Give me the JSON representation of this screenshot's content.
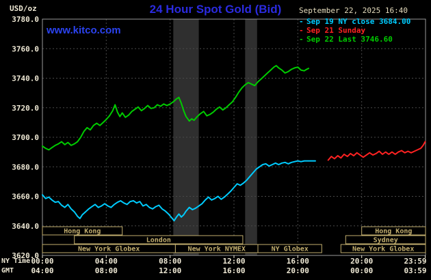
{
  "header": {
    "datetime": "September 22, 2025 16:40",
    "watermark": "www.kitco.com"
  },
  "theme": {
    "background": "#000000",
    "grid": "#4a4a4a",
    "border": "#9a9a9a",
    "band": "#2f2f2f",
    "session_box": "#c2ae6e",
    "axis_text": "#efe9d5",
    "title_blue": "#2b2bdf",
    "link_blue": "#2b43f0",
    "date_text": "#e5dcbd"
  },
  "sessions": [
    {
      "label": "Hong Kong",
      "row": 0,
      "start": 0,
      "end": 5.0
    },
    {
      "label": "Hong Kong",
      "row": 0,
      "start": 20.0,
      "end": 24.0
    },
    {
      "label": "London",
      "row": 1,
      "start": 2.0,
      "end": 12.55
    },
    {
      "label": "Sydney",
      "row": 1,
      "start": 19.0,
      "end": 24.0
    },
    {
      "label": "New York Globex",
      "row": 2,
      "start": 0,
      "end": 8.33
    },
    {
      "label": "New York NYMEX",
      "row": 2,
      "start": 8.33,
      "end": 13.5
    },
    {
      "label": "NY Globex",
      "row": 2,
      "start": 13.5,
      "end": 17.5
    },
    {
      "label": "New York Globex",
      "row": 2,
      "start": 18.7,
      "end": 24.0
    }
  ],
  "chart_data": {
    "type": "line",
    "title": "24 Hour Spot Gold (Bid)",
    "ylabel": "USD/oz",
    "ylim": [
      3620,
      3780
    ],
    "y_tick_step": 20,
    "y_tick_labels": [
      "3780.0",
      "3760.0",
      "3740.0",
      "3720.0",
      "3700.0",
      "3680.0",
      "3660.0",
      "3640.0",
      "3620.0"
    ],
    "x_range_hours": [
      0,
      24
    ],
    "x_tick_hours": [
      0,
      4,
      8,
      12,
      16,
      20,
      23.98
    ],
    "x_axis_rows": [
      {
        "label": "NY Time",
        "ticks": [
          "00:00",
          "04:00",
          "08:00",
          "12:00",
          "16:00",
          "20:00",
          "23:59"
        ]
      },
      {
        "label": "GMT",
        "ticks": [
          "04:00",
          "08:00",
          "12:00",
          "16:00",
          "20:00",
          "00:00",
          "03:59"
        ]
      }
    ],
    "grid": true,
    "legend_position": "top-right",
    "shaded_bands_hours": [
      [
        8.2,
        9.8
      ],
      [
        12.7,
        13.45
      ]
    ],
    "series": [
      {
        "id": "sep19",
        "legend_label": "Sep 19 NY close 3684.00",
        "color": "#00ccff",
        "points": [
          [
            0.0,
            3661
          ],
          [
            0.2,
            3658.5
          ],
          [
            0.4,
            3659.5
          ],
          [
            0.6,
            3657.5
          ],
          [
            0.8,
            3656
          ],
          [
            1.0,
            3656.5
          ],
          [
            1.2,
            3654
          ],
          [
            1.4,
            3652.5
          ],
          [
            1.6,
            3654.5
          ],
          [
            1.8,
            3651.5
          ],
          [
            2.0,
            3649.5
          ],
          [
            2.2,
            3646.5
          ],
          [
            2.35,
            3645
          ],
          [
            2.5,
            3647.5
          ],
          [
            2.7,
            3649.5
          ],
          [
            2.9,
            3651.5
          ],
          [
            3.1,
            3653
          ],
          [
            3.3,
            3654.5
          ],
          [
            3.5,
            3652.5
          ],
          [
            3.7,
            3653.5
          ],
          [
            3.9,
            3655
          ],
          [
            4.1,
            3653.5
          ],
          [
            4.3,
            3652.5
          ],
          [
            4.5,
            3654.5
          ],
          [
            4.7,
            3656
          ],
          [
            4.9,
            3657
          ],
          [
            5.1,
            3655.5
          ],
          [
            5.3,
            3654.5
          ],
          [
            5.5,
            3656.5
          ],
          [
            5.7,
            3657
          ],
          [
            5.9,
            3655.5
          ],
          [
            6.1,
            3656.5
          ],
          [
            6.3,
            3653.5
          ],
          [
            6.5,
            3654.5
          ],
          [
            6.7,
            3652.5
          ],
          [
            6.9,
            3651.5
          ],
          [
            7.1,
            3653
          ],
          [
            7.3,
            3654
          ],
          [
            7.5,
            3651.5
          ],
          [
            7.7,
            3650
          ],
          [
            7.9,
            3648
          ],
          [
            8.1,
            3645.5
          ],
          [
            8.25,
            3643.5
          ],
          [
            8.4,
            3646
          ],
          [
            8.55,
            3648
          ],
          [
            8.7,
            3646
          ],
          [
            8.85,
            3647.5
          ],
          [
            9.0,
            3650
          ],
          [
            9.2,
            3652.5
          ],
          [
            9.4,
            3651
          ],
          [
            9.6,
            3652
          ],
          [
            9.8,
            3653.5
          ],
          [
            10.0,
            3655
          ],
          [
            10.2,
            3657.5
          ],
          [
            10.4,
            3659.5
          ],
          [
            10.6,
            3657.5
          ],
          [
            10.8,
            3658.5
          ],
          [
            11.0,
            3660
          ],
          [
            11.2,
            3658
          ],
          [
            11.4,
            3659.5
          ],
          [
            11.6,
            3661.5
          ],
          [
            11.8,
            3663.5
          ],
          [
            12.0,
            3666
          ],
          [
            12.2,
            3668.5
          ],
          [
            12.4,
            3667.5
          ],
          [
            12.6,
            3669
          ],
          [
            12.8,
            3671
          ],
          [
            13.0,
            3673.5
          ],
          [
            13.2,
            3676
          ],
          [
            13.4,
            3678.5
          ],
          [
            13.6,
            3680
          ],
          [
            13.8,
            3681.5
          ],
          [
            14.0,
            3682
          ],
          [
            14.2,
            3680.5
          ],
          [
            14.4,
            3681.5
          ],
          [
            14.6,
            3682.5
          ],
          [
            14.8,
            3681.5
          ],
          [
            15.0,
            3682.5
          ],
          [
            15.2,
            3683
          ],
          [
            15.4,
            3682
          ],
          [
            15.6,
            3683
          ],
          [
            15.8,
            3683.5
          ],
          [
            16.0,
            3684
          ],
          [
            16.2,
            3683.5
          ],
          [
            16.4,
            3684
          ],
          [
            16.7,
            3684
          ],
          [
            17.1,
            3684
          ]
        ]
      },
      {
        "id": "sep21",
        "legend_label": "Sep 21 Sunday",
        "color": "#ff2222",
        "points": [
          [
            17.9,
            3684.5
          ],
          [
            18.1,
            3687
          ],
          [
            18.3,
            3685.5
          ],
          [
            18.5,
            3687.5
          ],
          [
            18.7,
            3686
          ],
          [
            18.9,
            3688.5
          ],
          [
            19.1,
            3687
          ],
          [
            19.3,
            3689
          ],
          [
            19.5,
            3687.5
          ],
          [
            19.7,
            3689.5
          ],
          [
            19.9,
            3688
          ],
          [
            20.1,
            3686.5
          ],
          [
            20.3,
            3688
          ],
          [
            20.5,
            3689.5
          ],
          [
            20.7,
            3688
          ],
          [
            20.9,
            3689
          ],
          [
            21.1,
            3690.5
          ],
          [
            21.3,
            3688.5
          ],
          [
            21.5,
            3690
          ],
          [
            21.7,
            3688.5
          ],
          [
            21.9,
            3690
          ],
          [
            22.1,
            3688.5
          ],
          [
            22.3,
            3690
          ],
          [
            22.5,
            3691
          ],
          [
            22.7,
            3689.5
          ],
          [
            22.9,
            3690.5
          ],
          [
            23.1,
            3689.5
          ],
          [
            23.3,
            3690.5
          ],
          [
            23.5,
            3691.5
          ],
          [
            23.7,
            3692.5
          ],
          [
            23.85,
            3694.5
          ],
          [
            23.98,
            3697
          ]
        ]
      },
      {
        "id": "sep22",
        "legend_label": "Sep 22 Last 3746.60",
        "color": "#00cc00",
        "points": [
          [
            0.0,
            3694
          ],
          [
            0.2,
            3692.5
          ],
          [
            0.4,
            3691.5
          ],
          [
            0.6,
            3693
          ],
          [
            0.8,
            3694.5
          ],
          [
            1.0,
            3695.5
          ],
          [
            1.2,
            3697
          ],
          [
            1.4,
            3695
          ],
          [
            1.6,
            3696.5
          ],
          [
            1.8,
            3694.5
          ],
          [
            2.0,
            3695.5
          ],
          [
            2.2,
            3697
          ],
          [
            2.4,
            3700
          ],
          [
            2.6,
            3704
          ],
          [
            2.8,
            3706.5
          ],
          [
            3.0,
            3705
          ],
          [
            3.2,
            3708
          ],
          [
            3.4,
            3709.5
          ],
          [
            3.6,
            3708
          ],
          [
            3.8,
            3710
          ],
          [
            4.0,
            3712
          ],
          [
            4.2,
            3714.5
          ],
          [
            4.4,
            3718
          ],
          [
            4.55,
            3722
          ],
          [
            4.7,
            3717
          ],
          [
            4.85,
            3714
          ],
          [
            5.0,
            3716.5
          ],
          [
            5.2,
            3713.5
          ],
          [
            5.4,
            3715
          ],
          [
            5.6,
            3717.5
          ],
          [
            5.8,
            3719
          ],
          [
            6.0,
            3720.5
          ],
          [
            6.2,
            3718
          ],
          [
            6.4,
            3719.5
          ],
          [
            6.6,
            3721.5
          ],
          [
            6.8,
            3719.5
          ],
          [
            7.0,
            3720
          ],
          [
            7.2,
            3722
          ],
          [
            7.4,
            3721
          ],
          [
            7.6,
            3722.5
          ],
          [
            7.8,
            3721.5
          ],
          [
            8.0,
            3722.5
          ],
          [
            8.2,
            3724
          ],
          [
            8.4,
            3726
          ],
          [
            8.55,
            3727
          ],
          [
            8.7,
            3723
          ],
          [
            8.85,
            3718
          ],
          [
            9.0,
            3714
          ],
          [
            9.2,
            3711
          ],
          [
            9.35,
            3712.5
          ],
          [
            9.5,
            3711.5
          ],
          [
            9.7,
            3714
          ],
          [
            9.9,
            3716
          ],
          [
            10.1,
            3717.5
          ],
          [
            10.3,
            3714.5
          ],
          [
            10.5,
            3715.5
          ],
          [
            10.7,
            3717
          ],
          [
            10.9,
            3719
          ],
          [
            11.1,
            3720.5
          ],
          [
            11.3,
            3718.5
          ],
          [
            11.5,
            3720
          ],
          [
            11.7,
            3722
          ],
          [
            11.9,
            3724
          ],
          [
            12.1,
            3727
          ],
          [
            12.3,
            3730.5
          ],
          [
            12.5,
            3733.5
          ],
          [
            12.7,
            3735.5
          ],
          [
            12.9,
            3737
          ],
          [
            13.1,
            3736
          ],
          [
            13.3,
            3735
          ],
          [
            13.5,
            3737.5
          ],
          [
            13.7,
            3739.5
          ],
          [
            13.9,
            3741.5
          ],
          [
            14.1,
            3743.5
          ],
          [
            14.3,
            3745.5
          ],
          [
            14.5,
            3747.5
          ],
          [
            14.65,
            3748.5
          ],
          [
            14.8,
            3747
          ],
          [
            15.0,
            3745.5
          ],
          [
            15.2,
            3743.5
          ],
          [
            15.4,
            3744.5
          ],
          [
            15.6,
            3746
          ],
          [
            15.8,
            3747
          ],
          [
            16.0,
            3747.5
          ],
          [
            16.2,
            3745.5
          ],
          [
            16.4,
            3745
          ],
          [
            16.55,
            3746
          ],
          [
            16.67,
            3746.6
          ]
        ]
      }
    ]
  }
}
